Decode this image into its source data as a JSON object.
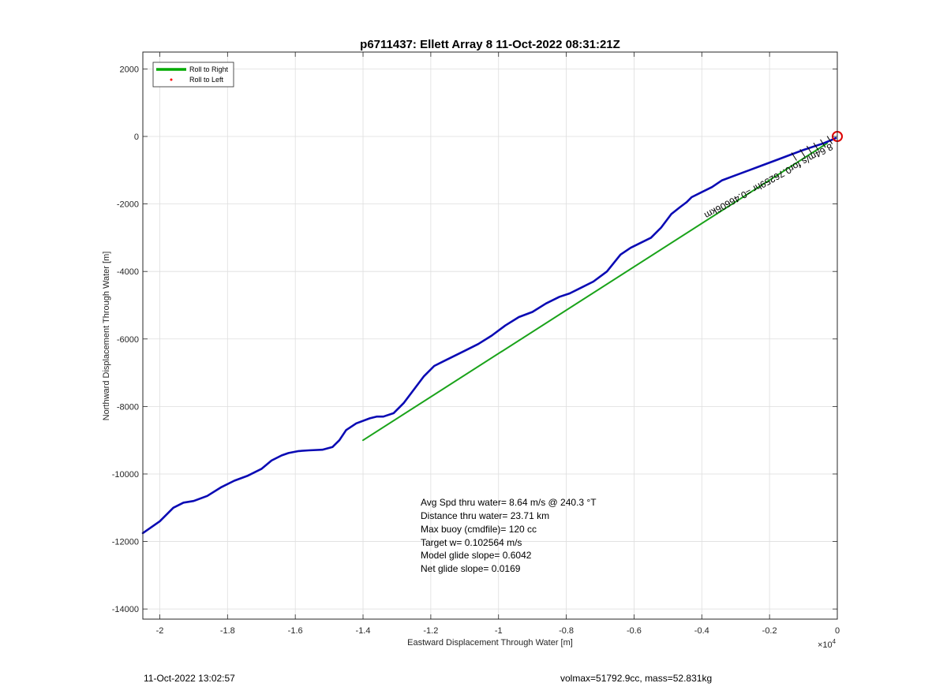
{
  "chart_data": {
    "type": "line",
    "title": "p6711437: Ellett Array 8 11-Oct-2022 08:31:21Z",
    "xlabel": "Eastward Displacement Through Water [m]",
    "ylabel": "Northward Displacement Through Water [m]",
    "x_exponent_label": "×10",
    "x_exponent_power": "4",
    "xlim": [
      -20500,
      0
    ],
    "ylim": [
      -14300,
      2500
    ],
    "x_ticks": [
      -20000,
      -18000,
      -16000,
      -14000,
      -12000,
      -10000,
      -8000,
      -6000,
      -4000,
      -2000,
      0
    ],
    "x_tick_labels": [
      "-2",
      "-1.8",
      "-1.6",
      "-1.4",
      "-1.2",
      "-1",
      "-0.8",
      "-0.6",
      "-0.4",
      "-0.2",
      "0"
    ],
    "y_ticks": [
      2000,
      0,
      -2000,
      -4000,
      -6000,
      -8000,
      -10000,
      -12000,
      -14000
    ],
    "y_tick_labels": [
      "2000",
      "0",
      "-2000",
      "-4000",
      "-6000",
      "-8000",
      "-10000",
      "-12000",
      "-14000"
    ],
    "grid": true,
    "legend_position": "top-left",
    "legend": [
      {
        "label": "Roll to Right",
        "color": "#00aa00",
        "style": "line"
      },
      {
        "label": "Roll to Left",
        "color": "#ff0000",
        "style": "dot"
      }
    ],
    "series": [
      {
        "name": "Roll to Right",
        "color": "#1aa31a",
        "x": [
          -14000,
          -300
        ],
        "y": [
          -9000,
          -200
        ]
      },
      {
        "color": "#0a0ab4",
        "x": [
          -20500,
          -20000,
          -19600,
          -19300,
          -19000,
          -18600,
          -18200,
          -17800,
          -17400,
          -17000,
          -16700,
          -16400,
          -16200,
          -15900,
          -15600,
          -15200,
          -14900,
          -14700,
          -14500,
          -14200,
          -13800,
          -13600,
          -13400,
          -13100,
          -12800,
          -12500,
          -12200,
          -11900,
          -11600,
          -11300,
          -11000,
          -10600,
          -10200,
          -9800,
          -9400,
          -9000,
          -8600,
          -8200,
          -7900,
          -7600,
          -7200,
          -6800,
          -6400,
          -6100,
          -5900,
          -5700,
          -5500,
          -5200,
          -4900,
          -4650,
          -4450,
          -4300,
          -4000,
          -3700,
          -3400,
          -3000,
          -2600,
          -2200,
          -1800,
          -1400,
          -1000,
          -700,
          -400,
          -200,
          -50
        ],
        "y": [
          -11750,
          -11400,
          -11000,
          -10850,
          -10800,
          -10650,
          -10400,
          -10200,
          -10050,
          -9850,
          -9600,
          -9450,
          -9380,
          -9320,
          -9300,
          -9280,
          -9200,
          -9000,
          -8700,
          -8500,
          -8350,
          -8300,
          -8300,
          -8200,
          -7900,
          -7500,
          -7100,
          -6800,
          -6650,
          -6500,
          -6350,
          -6150,
          -5900,
          -5600,
          -5350,
          -5200,
          -4950,
          -4750,
          -4650,
          -4500,
          -4300,
          -4000,
          -3500,
          -3300,
          -3200,
          -3100,
          -3000,
          -2700,
          -2300,
          -2100,
          -1950,
          -1800,
          -1650,
          -1500,
          -1300,
          -1150,
          -1000,
          -850,
          -700,
          -550,
          -400,
          -300,
          -200,
          -120,
          -50
        ]
      }
    ],
    "marker": {
      "x": 0,
      "y": 0,
      "color": "#dd0000"
    },
    "track_label": "8.64m/s for0.76259hr =0.46606km",
    "annotations": [
      "Avg Spd thru water=  8.64 m/s @ 240.3 °T",
      "Distance thru water= 23.71 km",
      "Max buoy (cmdfile)= 120 cc",
      "Target w= 0.102564 m/s",
      "Model glide slope= 0.6042",
      "Net glide slope= 0.0169"
    ]
  },
  "footer": {
    "timestamp": "11-Oct-2022 13:02:57",
    "mass_info": "volmax=51792.9cc, mass=52.831kg"
  }
}
